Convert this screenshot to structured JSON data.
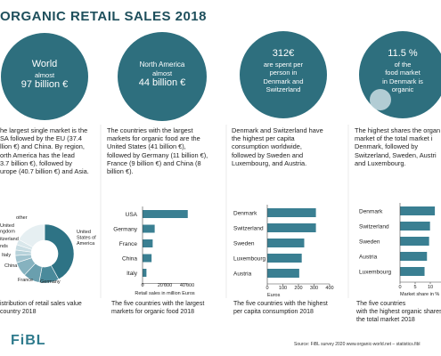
{
  "title": "ORGANIC RETAIL SALES 2018",
  "columns": [
    {
      "circle": [
        "World",
        "almost",
        "97 billion €"
      ],
      "text": [
        "he largest single market is the",
        "SA followed by the EU (37.4",
        "llion €) and China. By region,",
        "orth America has the lead",
        "3.7 billion €), followed by",
        "urope (40.7 billion €) and Asia."
      ],
      "chart": {
        "type": "donut",
        "labels": [
          "United States of America",
          "Germany",
          "France",
          "China",
          "Italy",
          "nds",
          "itzerland",
          "United\nngdom",
          "other"
        ],
        "values": [
          42,
          11,
          9,
          8,
          4,
          3,
          3,
          3,
          17
        ],
        "colors": [
          "#2e7385",
          "#4a8a9b",
          "#6a9fae",
          "#86b2bf",
          "#a1c4cf",
          "#b7d2da",
          "#c9dde3",
          "#d9e7eb",
          "#e6eff2"
        ]
      },
      "caption": [
        "istribution of retail sales value",
        "country 2018"
      ]
    },
    {
      "circle": [
        "North America",
        "almost",
        "44 billion €"
      ],
      "text": [
        "The countries with the largest",
        "markets for organic food are the",
        "United States (41 billion €),",
        "followed by Germany (11 billion €),",
        "France (9 billion €) and China (8",
        "billion €)."
      ],
      "chart": {
        "type": "bar",
        "categories": [
          "USA",
          "Germany",
          "France",
          "China",
          "Italy"
        ],
        "values": [
          40600,
          10900,
          9100,
          8100,
          3500
        ],
        "color": "#3a7f92",
        "xlim": [
          0,
          40000
        ],
        "xticks": [
          0,
          {
            "value": 20000,
            "label": "20'000"
          },
          {
            "value": 40000,
            "label": "40'000"
          }
        ],
        "x_label": "Retail sales in million Euros"
      },
      "caption": [
        "The five countries with the largest",
        "markets for organic food 2018"
      ]
    },
    {
      "circle": [
        "312€",
        "are spent per",
        "person in",
        "Denmark and",
        "Switzerland"
      ],
      "text": [
        "Denmark and Switzerland have",
        "the highest per capita",
        "consumption worldwide,",
        "followed by Sweden and",
        "Luxembourg, and Austria."
      ],
      "chart": {
        "type": "bar",
        "categories": [
          "Denmark",
          "Switzerland",
          "Sweden",
          "Luxembourg",
          "Austria"
        ],
        "values": [
          312,
          312,
          237,
          221,
          205
        ],
        "color": "#3a7f92",
        "xlim": [
          0,
          400
        ],
        "xticks": [
          0,
          100,
          200,
          300,
          400
        ],
        "x_label": "Euros"
      },
      "caption": [
        "The five countries with the highest",
        "per capita consumption 2018"
      ]
    },
    {
      "circle": [
        "11.5 %",
        "of the",
        "food market",
        "in Denmark is",
        "organic"
      ],
      "text": [
        "The highest shares the organ",
        "market of the total market i",
        "Denmark, followed by",
        "Switzerland, Sweden, Austri",
        "and Luxembourg."
      ],
      "chart": {
        "type": "bar",
        "categories": [
          "Denmark",
          "Switzerland",
          "Sweden",
          "Austria",
          "Luxembourg"
        ],
        "values": [
          11.5,
          9.9,
          9.6,
          8.9,
          8.1
        ],
        "color": "#3a7f92",
        "xlim": [
          0,
          15
        ],
        "xticks": [
          0,
          5,
          10,
          15
        ],
        "x_label": "Market share in %"
      },
      "caption": [
        "The five countries",
        "with the highest organic shares of",
        "the total market 2018"
      ]
    }
  ],
  "footer": {
    "logo": "FiBL",
    "source": "Source: FiBL survey 2020  www.organic-world.net – statistics.fibl"
  }
}
